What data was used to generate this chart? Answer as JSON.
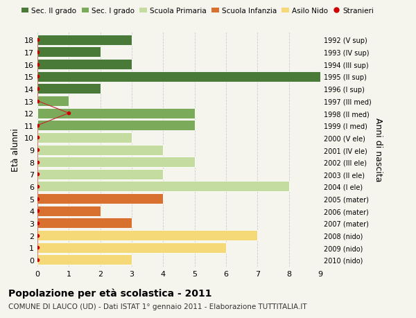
{
  "ages": [
    18,
    17,
    16,
    15,
    14,
    13,
    12,
    11,
    10,
    9,
    8,
    7,
    6,
    5,
    4,
    3,
    2,
    1,
    0
  ],
  "years": [
    "1992 (V sup)",
    "1993 (IV sup)",
    "1994 (III sup)",
    "1995 (II sup)",
    "1996 (I sup)",
    "1997 (III med)",
    "1998 (II med)",
    "1999 (I med)",
    "2000 (V ele)",
    "2001 (IV ele)",
    "2002 (III ele)",
    "2003 (II ele)",
    "2004 (I ele)",
    "2005 (mater)",
    "2006 (mater)",
    "2007 (mater)",
    "2008 (nido)",
    "2009 (nido)",
    "2010 (nido)"
  ],
  "bar_values": [
    3,
    2,
    3,
    9,
    2,
    1,
    5,
    5,
    3,
    4,
    5,
    4,
    8,
    4,
    2,
    3,
    7,
    6,
    3
  ],
  "bar_colors": [
    "#4a7a38",
    "#4a7a38",
    "#4a7a38",
    "#4a7a38",
    "#4a7a38",
    "#7aaa5a",
    "#7aaa5a",
    "#7aaa5a",
    "#c5dca0",
    "#c5dca0",
    "#c5dca0",
    "#c5dca0",
    "#c5dca0",
    "#d87030",
    "#d87030",
    "#d87030",
    "#f5d878",
    "#f5d878",
    "#f5d878"
  ],
  "stranieri_ages": [
    18,
    17,
    16,
    15,
    14,
    13,
    12,
    11,
    10,
    9,
    8,
    7,
    6,
    5,
    4,
    3,
    2,
    1,
    0
  ],
  "stranieri_values": [
    0,
    0,
    0,
    0,
    0,
    0,
    1,
    0,
    0,
    0,
    0,
    0,
    0,
    0,
    0,
    0,
    0,
    0,
    0
  ],
  "legend_labels": [
    "Sec. II grado",
    "Sec. I grado",
    "Scuola Primaria",
    "Scuola Infanzia",
    "Asilo Nido",
    "Stranieri"
  ],
  "legend_colors": [
    "#4a7a38",
    "#7aaa5a",
    "#c5dca0",
    "#d87030",
    "#f5d878",
    "#cc0000"
  ],
  "ylabel": "Età alunni",
  "ylabel_right": "Anni di nascita",
  "title": "Popolazione per età scolastica - 2011",
  "subtitle": "COMUNE DI LAUCO (UD) - Dati ISTAT 1° gennaio 2011 - Elaborazione TUTTITALIA.IT",
  "xlim": [
    0,
    9
  ],
  "background_color": "#f5f5ee",
  "bar_height": 0.85
}
